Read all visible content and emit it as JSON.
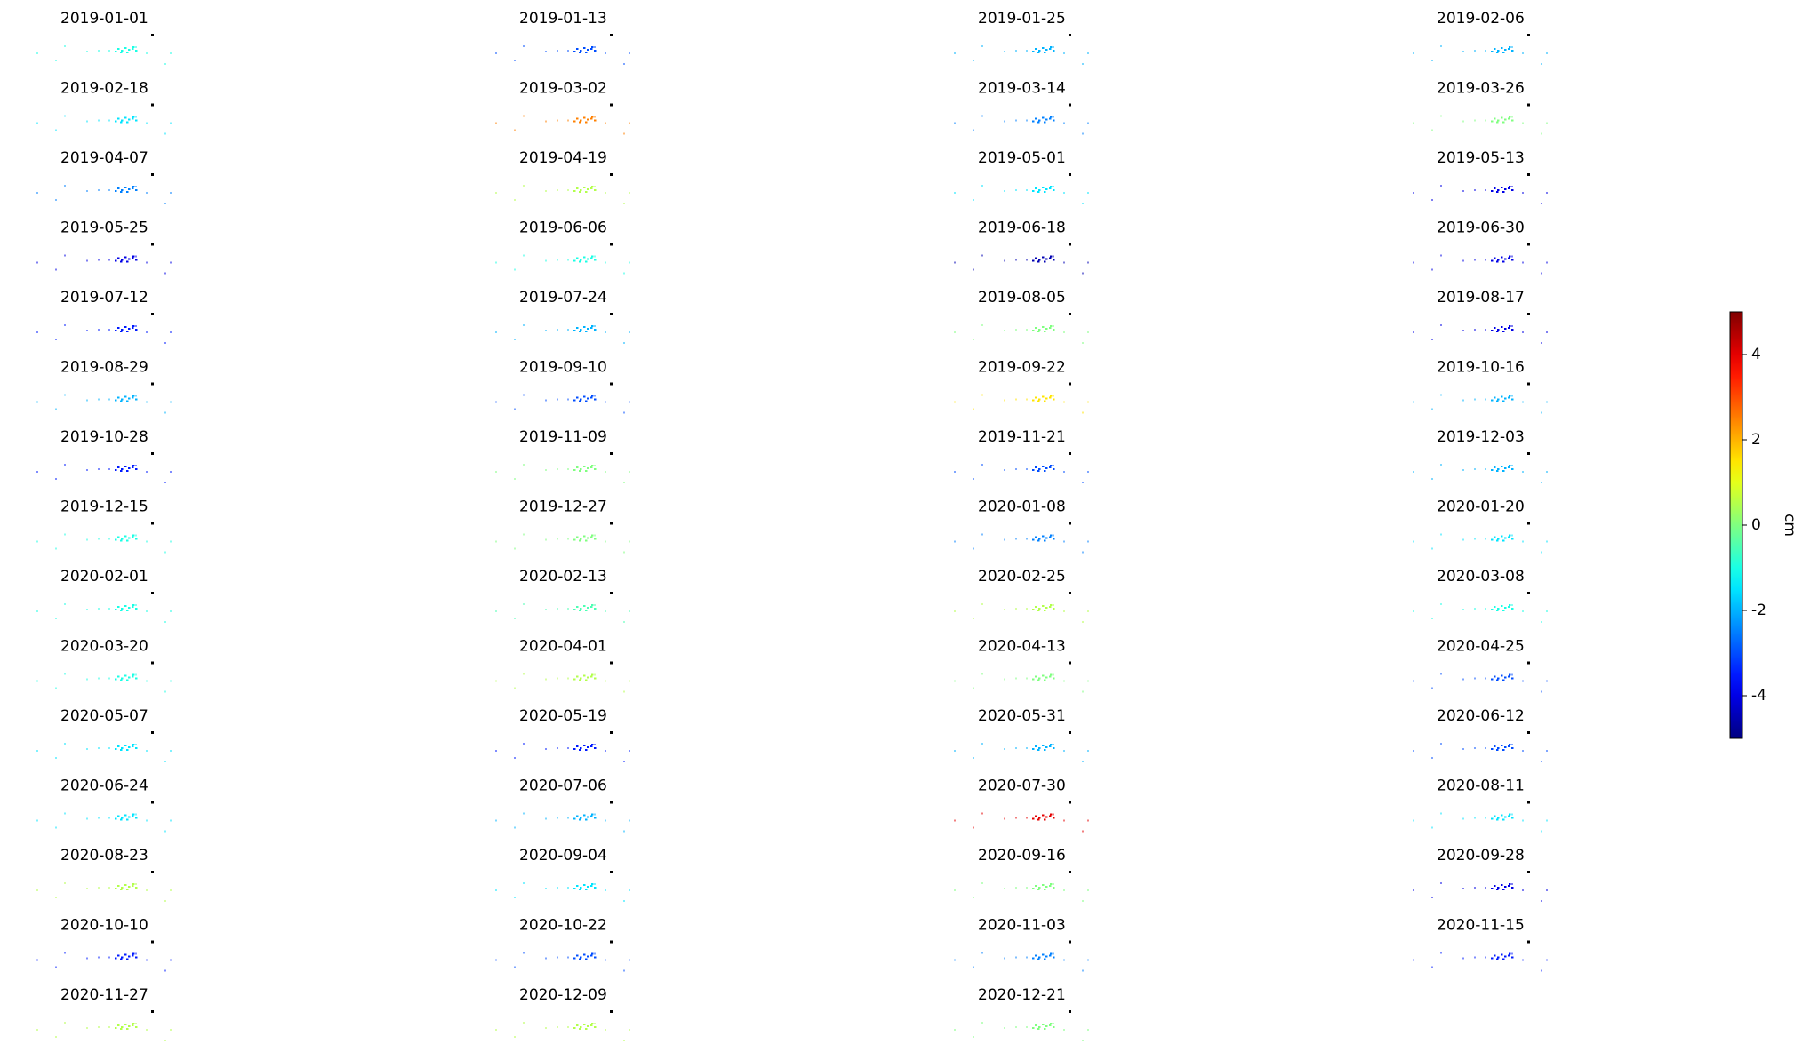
{
  "chart_data": {
    "type": "image-grid",
    "titles": [
      "2019-01-01",
      "2019-01-13",
      "2019-01-25",
      "2019-02-06",
      "2019-02-18",
      "2019-03-02",
      "2019-03-14",
      "2019-03-26",
      "2019-04-07",
      "2019-04-19",
      "2019-05-01",
      "2019-05-13",
      "2019-05-25",
      "2019-06-06",
      "2019-06-18",
      "2019-06-30",
      "2019-07-12",
      "2019-07-24",
      "2019-08-05",
      "2019-08-17",
      "2019-08-29",
      "2019-09-10",
      "2019-09-22",
      "2019-10-16",
      "2019-10-28",
      "2019-11-09",
      "2019-11-21",
      "2019-12-03",
      "2019-12-15",
      "2019-12-27",
      "2020-01-08",
      "2020-01-20",
      "2020-02-01",
      "2020-02-13",
      "2020-02-25",
      "2020-03-08",
      "2020-03-20",
      "2020-04-01",
      "2020-04-13",
      "2020-04-25",
      "2020-05-07",
      "2020-05-19",
      "2020-05-31",
      "2020-06-12",
      "2020-06-24",
      "2020-07-06",
      "2020-07-30",
      "2020-08-11",
      "2020-08-23",
      "2020-09-04",
      "2020-09-16",
      "2020-09-28",
      "2020-10-10",
      "2020-10-22",
      "2020-11-03",
      "2020-11-15",
      "2020-11-27",
      "2020-12-09",
      "2020-12-21"
    ],
    "values": [
      -1,
      -3,
      -2,
      -2,
      -1.5,
      2.5,
      -2.5,
      0,
      -2.5,
      0.5,
      -1.5,
      -4,
      -4,
      -1,
      -4.5,
      -4,
      -3.5,
      -2,
      0,
      -4,
      -2,
      -3,
      1.5,
      -2,
      -3.5,
      0,
      -3,
      -2,
      -1,
      0,
      -2.5,
      -1.5,
      -1,
      -0.5,
      0.5,
      -1,
      -1,
      0.5,
      0,
      -3,
      -1.5,
      -3.5,
      -2,
      -3,
      -1.5,
      -2,
      4,
      -1.5,
      0.5,
      -1.5,
      0,
      -4,
      -3.5,
      -3,
      -2.5,
      -3.5,
      0.5,
      0.5,
      0
    ],
    "colorbar": {
      "label": "cm",
      "lim": [
        -5,
        5
      ],
      "ticks": [
        -4,
        -2,
        0,
        2,
        4
      ],
      "colormap": "jet"
    }
  }
}
